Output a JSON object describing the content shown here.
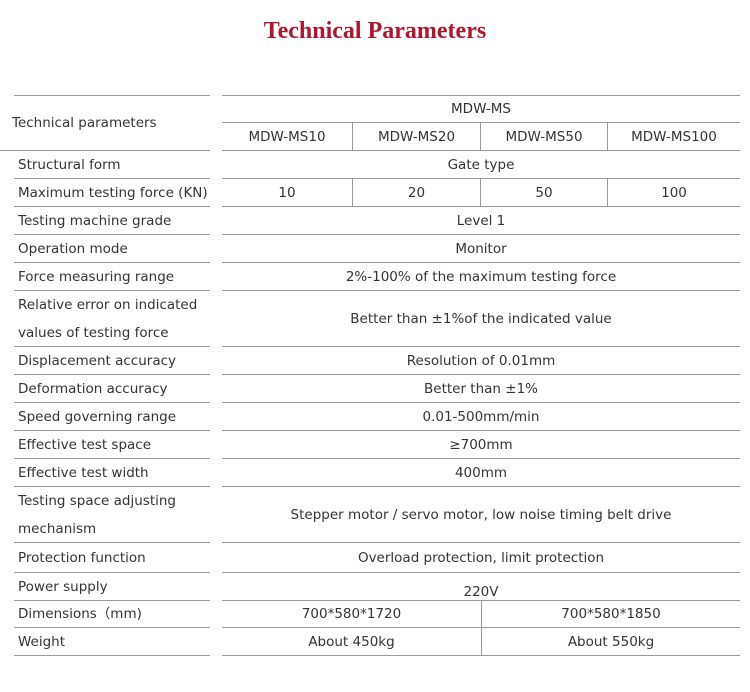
{
  "title": "Technical Parameters",
  "header": {
    "label": "Technical parameters",
    "group": "MDW-MS",
    "models": [
      "MDW-MS10",
      "MDW-MS20",
      "MDW-MS50",
      "MDW-MS100"
    ]
  },
  "rows": [
    {
      "label": "Structural form",
      "values": [
        "Gate type"
      ]
    },
    {
      "label": "Maximum testing force (KN)",
      "values": [
        "10",
        "20",
        "50",
        "100"
      ]
    },
    {
      "label": "Testing machine grade",
      "values": [
        "Level 1"
      ]
    },
    {
      "label": "Operation mode",
      "values": [
        "Monitor"
      ]
    },
    {
      "label": "Force measuring range",
      "values": [
        "2%-100% of the maximum testing force"
      ]
    },
    {
      "label": "Relative error on indicated values of testing force",
      "values": [
        "Better than ±1%of the indicated value"
      ]
    },
    {
      "label": "Displacement accuracy",
      "values": [
        "Resolution of 0.01mm"
      ]
    },
    {
      "label": "Deformation accuracy",
      "values": [
        "Better than ±1%"
      ]
    },
    {
      "label": "Speed governing range",
      "values": [
        "0.01-500mm/min"
      ]
    },
    {
      "label": "Effective test space",
      "values": [
        "≥700mm"
      ]
    },
    {
      "label": "Effective test width",
      "values": [
        "400mm"
      ]
    },
    {
      "label": "Testing space adjusting mechanism",
      "values": [
        "Stepper motor / servo motor, low noise timing belt drive"
      ]
    },
    {
      "label": "Protection function",
      "values": [
        "Overload protection, limit protection"
      ]
    },
    {
      "label": "Power supply",
      "values": [
        "220V"
      ]
    },
    {
      "label": "Dimensions（mm)",
      "values": [
        "700*580*1720",
        "700*580*1850"
      ]
    },
    {
      "label": "Weight",
      "values": [
        "About 450kg",
        "About 550kg"
      ]
    }
  ]
}
